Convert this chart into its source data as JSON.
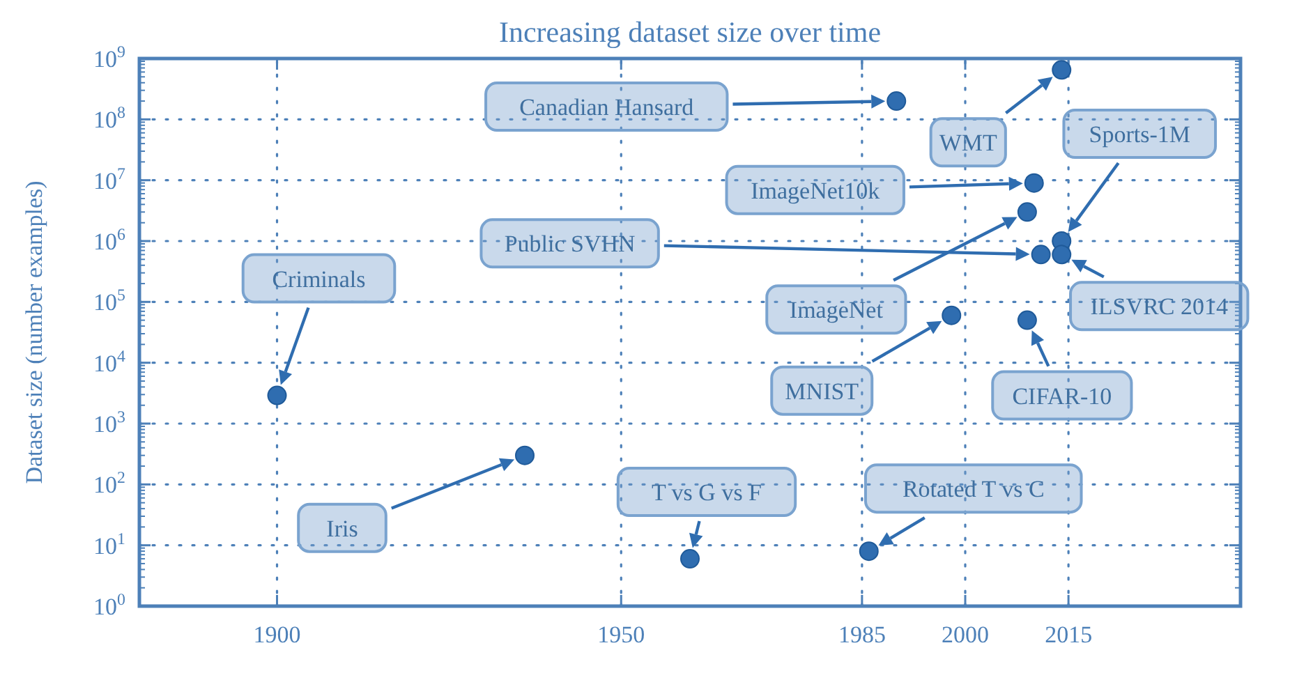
{
  "chart_data": {
    "type": "scatter",
    "title": "Increasing dataset size over time",
    "ylabel": "Dataset size (number examples)",
    "x": [
      1900,
      1936,
      1960,
      1986,
      1998,
      1990,
      2014,
      2010,
      2009,
      2011,
      2014,
      2014,
      2009
    ],
    "series": [
      {
        "color": "#2f6db0",
        "values": [
          2900,
          300,
          6,
          8,
          60000,
          200000000,
          650000000,
          9000000,
          3000000,
          600000,
          1000000,
          600000,
          50000
        ]
      }
    ],
    "annotations": [
      "Criminals",
      "Iris",
      "T vs G vs F",
      "Rotated T vs C",
      "MNIST",
      "Canadian Hansard",
      "WMT",
      "ImageNet10k",
      "ImageNet",
      "Public SVHN",
      "Sports-1M",
      "ILSVRC 2014",
      "CIFAR-10"
    ],
    "xlim": [
      1880,
      2040
    ],
    "xticks": [
      1900,
      1950,
      1985,
      2000,
      2015
    ],
    "ylim": [
      1,
      1000000000
    ],
    "yticks": [
      {
        "value": 1,
        "label": "10$^{0}$"
      },
      {
        "value": 10,
        "label": "10$^{1}$"
      },
      {
        "value": 100,
        "label": "10$^{2}$"
      },
      {
        "value": 1000,
        "label": "10$^{3}$"
      },
      {
        "value": 10000,
        "label": "10$^{4}$"
      },
      {
        "value": 100000,
        "label": "10$^{5}$"
      },
      {
        "value": 1000000,
        "label": "10$^{6}$"
      },
      {
        "value": 10000000,
        "label": "10$^{7}$"
      },
      {
        "value": 100000000,
        "label": "10$^{8}$"
      },
      {
        "value": 1000000000,
        "label": "10$^{9}$"
      }
    ],
    "log": "y",
    "grid": true,
    "marker": "circle"
  }
}
